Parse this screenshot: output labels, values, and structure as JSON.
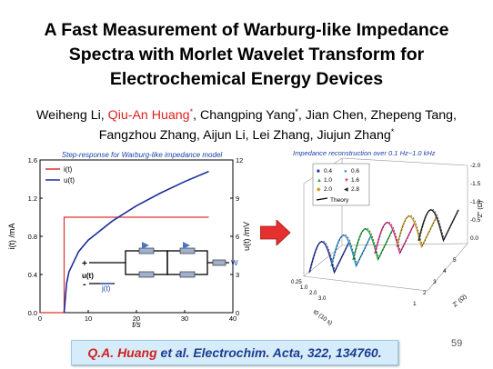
{
  "slide": {
    "title_lines": [
      "A Fast Measurement of Warburg-like Impedance",
      "Spectra with Morlet Wavelet Transform for",
      "Electrochemical Energy Devices"
    ],
    "authors": {
      "a1": "Weiheng Li, ",
      "a2": "Qiu-An Huang",
      "a2_sup": "*",
      "a3": ", Changping Yang",
      "a3_sup": "*",
      "a4": ", Jian Chen, Zhepeng Tang,",
      "a5": "Fangzhou Zhang, Aijun Li, Lei Zhang, Jiujun Zhang",
      "a5_sup": "*"
    },
    "citation": {
      "author": "Q.A. Huang",
      "rest": " et al. Electrochim. Acta, 322, 134760."
    },
    "page_number": "59",
    "colors": {
      "highlight": "#e02020",
      "citation_bg": "#d6ecfa",
      "citation_text": "#1c3d8f"
    }
  },
  "left_chart": {
    "title": "Step-response for Warburg-like impedance model",
    "xlabel": "t/s",
    "ylabel_left": "i(t) /mA",
    "ylabel_right": "u(t) /mV",
    "x_ticks": [
      "0",
      "10",
      "20",
      "30",
      "40"
    ],
    "yl_ticks": [
      "0.0",
      "0.4",
      "0.8",
      "1.2",
      "1.6"
    ],
    "yr_ticks": [
      "0",
      "3",
      "6",
      "9",
      "12"
    ],
    "legend": [
      "i(t)",
      "u(t)"
    ],
    "circuit": {
      "u_label": "u(t)",
      "i_label": "j(t)",
      "w_label": "W",
      "plus": "+",
      "minus": "-"
    }
  },
  "chart_data": {
    "type": "line",
    "title": "Step-response for Warburg-like impedance model",
    "xlabel": "t/s",
    "ylabel": "i(t) /mA",
    "y2label": "u(t) /mV",
    "xlim": [
      0,
      40
    ],
    "ylim": [
      0,
      1.6
    ],
    "y2lim": [
      0,
      12
    ],
    "series": [
      {
        "name": "i(t)",
        "axis": "left",
        "x": [
          0,
          5,
          5,
          35
        ],
        "values": [
          0,
          0,
          1.0,
          1.0
        ]
      },
      {
        "name": "u(t)",
        "axis": "right",
        "x": [
          5,
          5.5,
          6,
          8,
          10,
          15,
          20,
          25,
          30,
          35
        ],
        "values": [
          0,
          2.3,
          3.2,
          4.8,
          5.7,
          7.2,
          8.4,
          9.4,
          10.3,
          11.1
        ]
      }
    ],
    "legend_position": "top-left",
    "grid": false
  },
  "right_chart": {
    "title": "Impedance reconstruction over 0.1 Hz~1.0 kHz",
    "legend": [
      "0.4",
      "0.6",
      "1.0",
      "1.6",
      "2.0",
      "2.8"
    ],
    "legend_note": "Theory",
    "axis_labels": {
      "z_im": "Z\" (Ω)",
      "z_re": "Z' (Ω)",
      "depth": "t0 (10 s)"
    },
    "z_ticks": [
      "-2.0",
      "-1.5",
      "-1.0",
      "-0.5",
      "0.0"
    ],
    "re_ticks": [
      "1",
      "2",
      "3",
      "4",
      "5"
    ],
    "depth_ticks": [
      "0.25",
      "1.0",
      "2.0",
      "3.0"
    ]
  }
}
